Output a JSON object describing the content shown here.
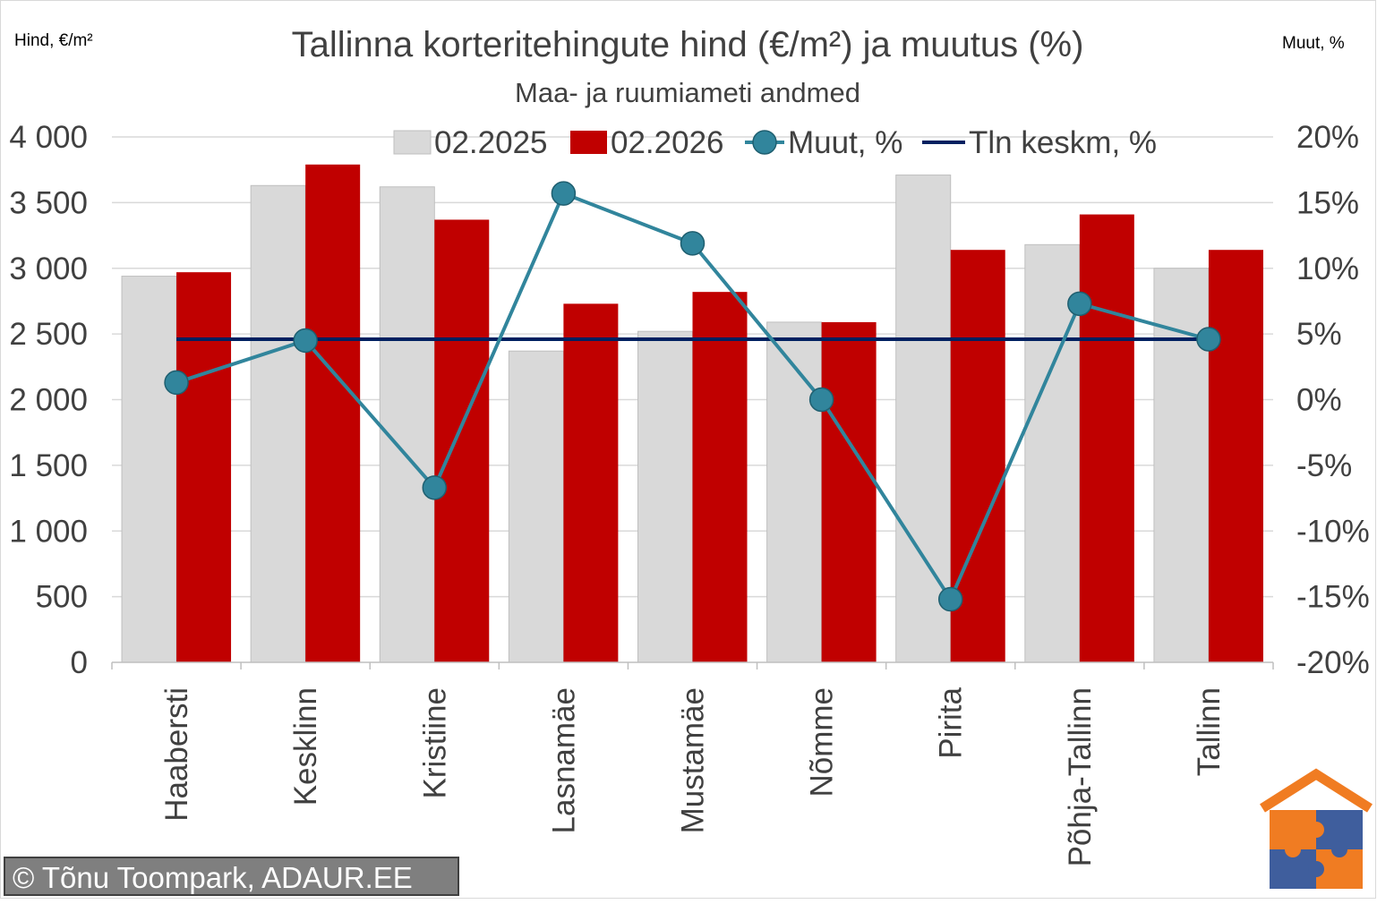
{
  "chart_data": {
    "type": "bar",
    "title": "Tallinna korteritehingute hind (€/m²) ja muutus (%)",
    "subtitle": "Maa- ja ruumiameti andmed",
    "ylabel": "Hind, €/m²",
    "y2label": "Muut, %",
    "ylim": [
      0,
      4000
    ],
    "y2lim": [
      -20,
      20
    ],
    "yticks": [
      "0",
      "500",
      "1 000",
      "1 500",
      "2 000",
      "2 500",
      "3 000",
      "3 500",
      "4 000"
    ],
    "y2ticks": [
      "-20%",
      "-15%",
      "-10%",
      "-5%",
      "0%",
      "5%",
      "10%",
      "15%",
      "20%"
    ],
    "categories": [
      "Haabersti",
      "Kesklinn",
      "Kristiine",
      "Lasnamäe",
      "Mustamäe",
      "Nõmme",
      "Pirita",
      "Põhja-Tallinn",
      "Tallinn"
    ],
    "series": [
      {
        "name": "02.2025",
        "kind": "bar",
        "color": "#d9d9d9",
        "values": [
          2940,
          3630,
          3620,
          2370,
          2520,
          2590,
          3710,
          3180,
          3000
        ]
      },
      {
        "name": "02.2026",
        "kind": "bar",
        "color": "#c00000",
        "values": [
          2970,
          3790,
          3370,
          2730,
          2820,
          2590,
          3140,
          3410,
          3140
        ]
      },
      {
        "name": "Muut, %",
        "kind": "line",
        "axis": "right",
        "color": "#31859c",
        "values": [
          1.3,
          4.5,
          -6.7,
          15.7,
          11.9,
          0.0,
          -15.2,
          7.3,
          4.6
        ]
      },
      {
        "name": "Tln keskm, %",
        "kind": "line",
        "axis": "right",
        "color": "#002060",
        "values": [
          4.6,
          4.6,
          4.6,
          4.6,
          4.6,
          4.6,
          4.6,
          4.6,
          4.6
        ]
      }
    ],
    "legend_position": "top",
    "grid": true
  },
  "copyright": "© Tõnu Toompark, ADAUR.EE",
  "logo": "house-puzzle-logo"
}
